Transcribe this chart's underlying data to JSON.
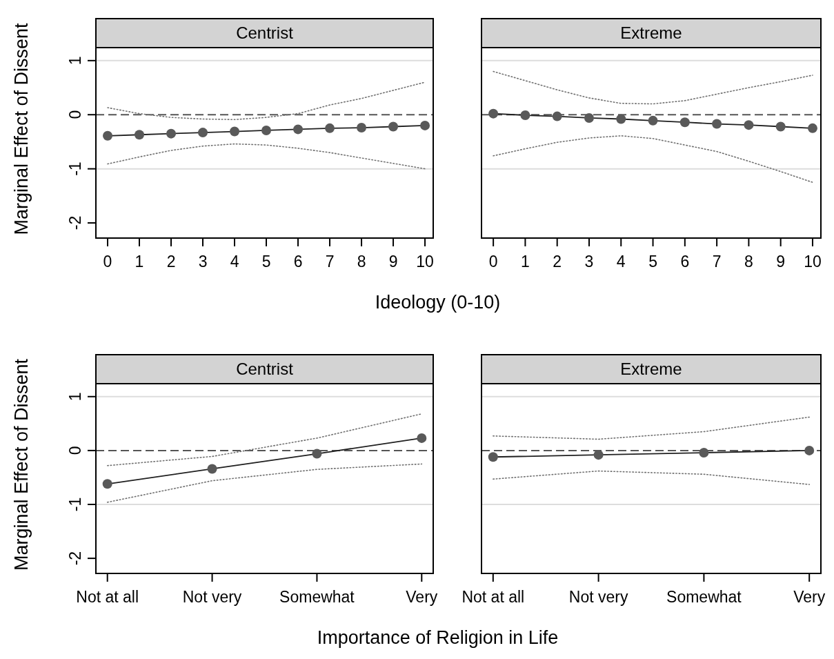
{
  "chart_data": [
    {
      "type": "line",
      "title": "Centrist",
      "xlabel": "Ideology (0-10)",
      "ylabel": "Marginal Effect of Dissent",
      "x": [
        0,
        1,
        2,
        3,
        4,
        5,
        6,
        7,
        8,
        9,
        10
      ],
      "xlim": [
        -0.37,
        10.26
      ],
      "xticks": [
        0,
        1,
        2,
        3,
        4,
        5,
        6,
        7,
        8,
        9,
        10
      ],
      "ylim": [
        -2.28,
        1.24
      ],
      "yticks": [
        -2,
        -1,
        0,
        1
      ],
      "series": [
        {
          "color": "#707070",
          "line_style": "dotted",
          "marker": "none",
          "values": [
            0.13,
            0.02,
            -0.05,
            -0.08,
            -0.09,
            -0.05,
            0.02,
            0.18,
            0.3,
            0.45,
            0.6
          ]
        },
        {
          "color": "#707070",
          "line_style": "dotted",
          "marker": "none",
          "values": [
            -0.91,
            -0.78,
            -0.66,
            -0.58,
            -0.54,
            -0.56,
            -0.62,
            -0.7,
            -0.8,
            -0.9,
            -1.0
          ]
        },
        {
          "color": "#595959",
          "line_style": "solid",
          "marker": "circle",
          "values": [
            -0.39,
            -0.37,
            -0.35,
            -0.33,
            -0.31,
            -0.29,
            -0.27,
            -0.25,
            -0.24,
            -0.22,
            -0.2
          ]
        }
      ],
      "ref_lines": [
        {
          "axis": "y",
          "value": 0,
          "color": "#555555",
          "line_style": "dashed"
        },
        {
          "axis": "y",
          "value": 1,
          "color": "#dddddd",
          "line_style": "solid"
        },
        {
          "axis": "y",
          "value": -1,
          "color": "#dddddd",
          "line_style": "solid"
        }
      ]
    },
    {
      "type": "line",
      "title": "Extreme",
      "x": [
        0,
        1,
        2,
        3,
        4,
        5,
        6,
        7,
        8,
        9,
        10
      ],
      "xlim": [
        -0.37,
        10.26
      ],
      "xticks": [
        0,
        1,
        2,
        3,
        4,
        5,
        6,
        7,
        8,
        9,
        10
      ],
      "ylim": [
        -2.28,
        1.24
      ],
      "tick_labels": "x",
      "series": [
        {
          "color": "#707070",
          "line_style": "dotted",
          "marker": "none",
          "values": [
            0.8,
            0.63,
            0.46,
            0.31,
            0.21,
            0.2,
            0.26,
            0.38,
            0.5,
            0.61,
            0.73
          ]
        },
        {
          "color": "#707070",
          "line_style": "dotted",
          "marker": "none",
          "values": [
            -0.76,
            -0.63,
            -0.51,
            -0.43,
            -0.39,
            -0.44,
            -0.56,
            -0.68,
            -0.86,
            -1.05,
            -1.25
          ]
        },
        {
          "color": "#595959",
          "line_style": "solid",
          "marker": "circle",
          "values": [
            0.02,
            -0.01,
            -0.03,
            -0.06,
            -0.08,
            -0.11,
            -0.14,
            -0.17,
            -0.19,
            -0.22,
            -0.25
          ]
        }
      ],
      "ref_lines": [
        {
          "axis": "y",
          "value": 0,
          "color": "#555555",
          "line_style": "dashed"
        },
        {
          "axis": "y",
          "value": 1,
          "color": "#dddddd",
          "line_style": "solid"
        },
        {
          "axis": "y",
          "value": -1,
          "color": "#dddddd",
          "line_style": "solid"
        }
      ]
    },
    {
      "type": "line",
      "title": "Centrist",
      "xlabel": "Importance of Religion in Life",
      "ylabel": "Marginal Effect of Dissent",
      "categories": [
        "Not at all",
        "Not very",
        "Somewhat",
        "Very"
      ],
      "ylim": [
        -2.28,
        1.24
      ],
      "yticks": [
        -2,
        -1,
        0,
        1
      ],
      "series": [
        {
          "color": "#707070",
          "line_style": "dotted",
          "marker": "none",
          "values": [
            -0.28,
            -0.11,
            0.23,
            0.68
          ]
        },
        {
          "color": "#707070",
          "line_style": "dotted",
          "marker": "none",
          "values": [
            -0.96,
            -0.56,
            -0.35,
            -0.25
          ]
        },
        {
          "color": "#595959",
          "line_style": "solid",
          "marker": "circle",
          "values": [
            -0.62,
            -0.34,
            -0.06,
            0.23
          ]
        }
      ],
      "ref_lines": [
        {
          "axis": "y",
          "value": 0,
          "color": "#555555",
          "line_style": "dashed"
        },
        {
          "axis": "y",
          "value": 1,
          "color": "#dddddd",
          "line_style": "solid"
        },
        {
          "axis": "y",
          "value": -1,
          "color": "#dddddd",
          "line_style": "solid"
        }
      ]
    },
    {
      "type": "line",
      "title": "Extreme",
      "categories": [
        "Not at all",
        "Not very",
        "Somewhat",
        "Very"
      ],
      "ylim": [
        -2.28,
        1.24
      ],
      "tick_labels": "x",
      "series": [
        {
          "color": "#707070",
          "line_style": "dotted",
          "marker": "none",
          "values": [
            0.27,
            0.21,
            0.35,
            0.62
          ]
        },
        {
          "color": "#707070",
          "line_style": "dotted",
          "marker": "none",
          "values": [
            -0.53,
            -0.38,
            -0.44,
            -0.63
          ]
        },
        {
          "color": "#595959",
          "line_style": "solid",
          "marker": "circle",
          "values": [
            -0.12,
            -0.08,
            -0.04,
            0.0
          ]
        }
      ],
      "ref_lines": [
        {
          "axis": "y",
          "value": 0,
          "color": "#555555",
          "line_style": "dashed"
        },
        {
          "axis": "y",
          "value": 1,
          "color": "#dddddd",
          "line_style": "solid"
        },
        {
          "axis": "y",
          "value": -1,
          "color": "#dddddd",
          "line_style": "solid"
        }
      ]
    }
  ]
}
